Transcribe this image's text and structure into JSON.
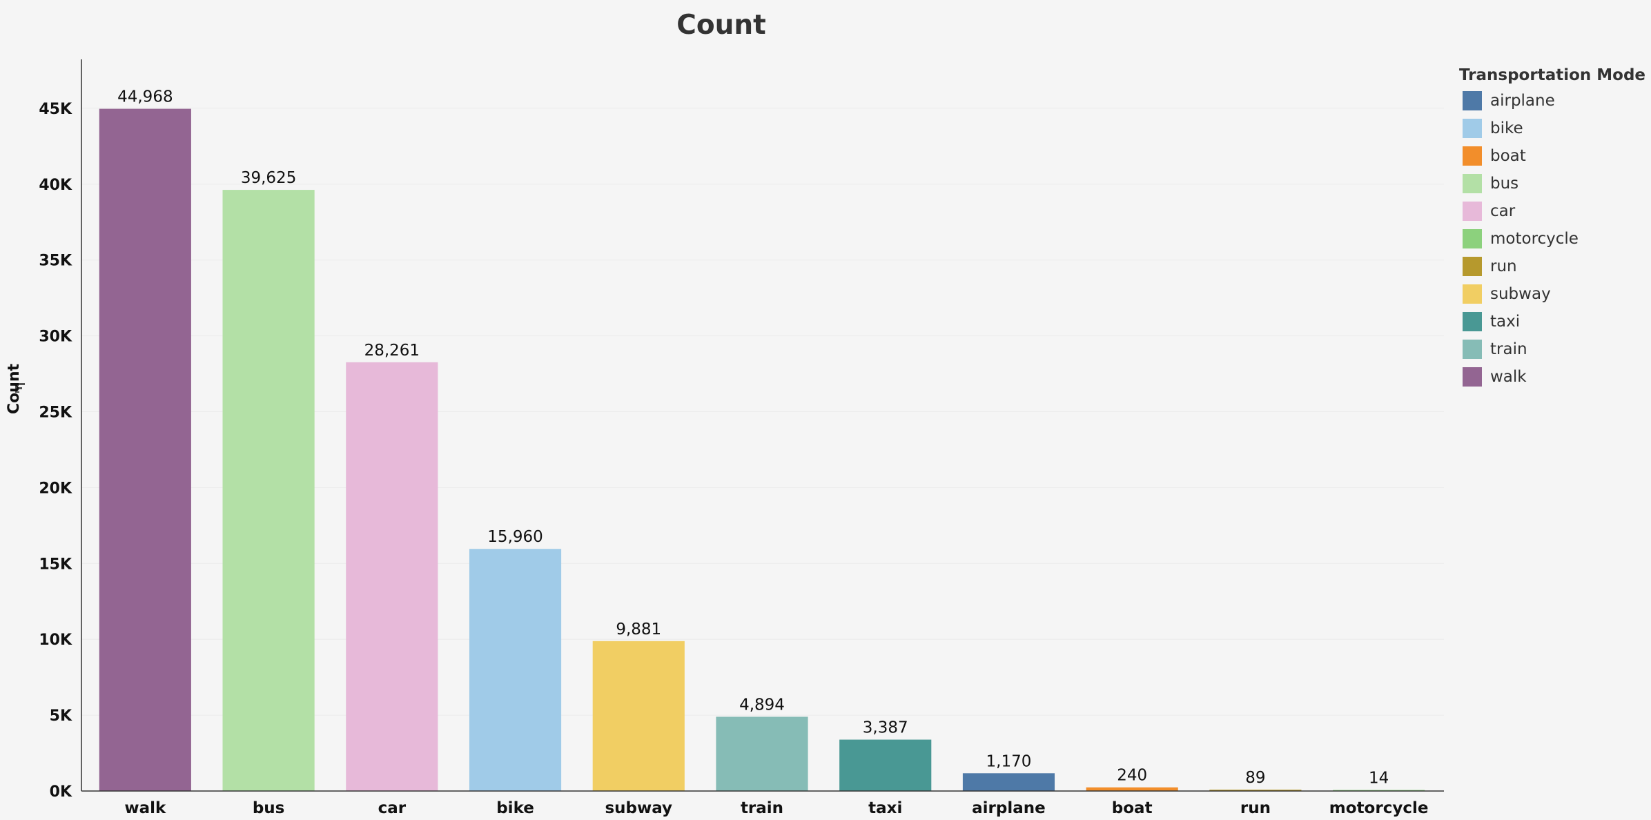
{
  "chart_data": {
    "type": "bar",
    "title": "Count",
    "ylabel": "Count",
    "xlabel": "",
    "ylim": [
      0,
      48500
    ],
    "yticks": [
      0,
      5000,
      10000,
      15000,
      20000,
      25000,
      30000,
      35000,
      40000,
      45000
    ],
    "ytick_labels": [
      "0K",
      "5K",
      "10K",
      "15K",
      "20K",
      "25K",
      "30K",
      "35K",
      "40K",
      "45K"
    ],
    "grid": true,
    "legend_placement": "top-right",
    "categories": [
      "walk",
      "bus",
      "car",
      "bike",
      "subway",
      "train",
      "taxi",
      "airplane",
      "boat",
      "run",
      "motorcycle"
    ],
    "values": [
      44968,
      39625,
      28261,
      15960,
      9881,
      4894,
      3387,
      1170,
      240,
      89,
      14
    ],
    "value_labels": [
      "44,968",
      "39,625",
      "28,261",
      "15,960",
      "9,881",
      "4,894",
      "3,387",
      "1,170",
      "240",
      "89",
      "14"
    ],
    "colors": {
      "airplane": "#4e79a7",
      "bike": "#a0cbe8",
      "boat": "#f28e2b",
      "bus": "#b3e0a6",
      "car": "#e7b9d9",
      "motorcycle": "#8cd17d",
      "run": "#b6992d",
      "subway": "#f1ce63",
      "taxi": "#499894",
      "train": "#86bcb6",
      "walk": "#936592"
    },
    "legend": {
      "title": "Transportation Mode",
      "items": [
        "airplane",
        "bike",
        "boat",
        "bus",
        "car",
        "motorcycle",
        "run",
        "subway",
        "taxi",
        "train",
        "walk"
      ]
    }
  },
  "sort_icon": "sort-descending-icon"
}
